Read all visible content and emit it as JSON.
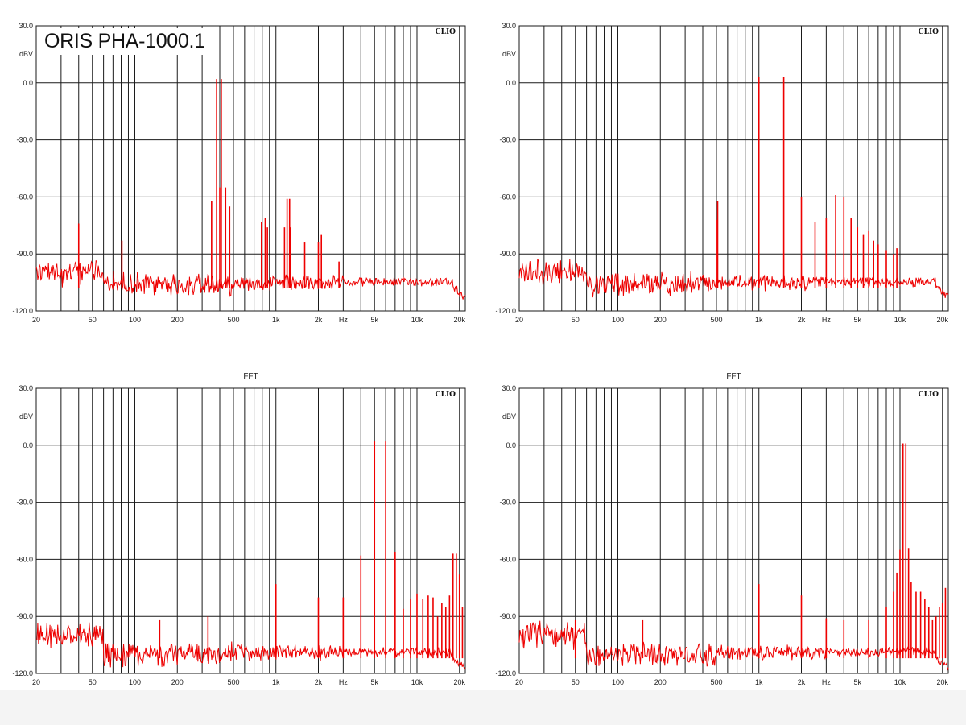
{
  "figure": {
    "device_title": "ORIS PHA-1000.1",
    "background": "#ffffff",
    "footer_color": "#f4f4f4"
  },
  "chart_data": [
    {
      "type": "line",
      "title": "",
      "brand": "CLIO",
      "ylabel": "dBV",
      "xlabel": "Hz",
      "x_scale": "log",
      "xlim": [
        20,
        22000
      ],
      "ylim": [
        -120,
        30
      ],
      "x_ticks": [
        {
          "v": 20,
          "label": "20"
        },
        {
          "v": 50,
          "label": "50"
        },
        {
          "v": 100,
          "label": "100"
        },
        {
          "v": 200,
          "label": "200"
        },
        {
          "v": 500,
          "label": "500"
        },
        {
          "v": 1000,
          "label": "1k"
        },
        {
          "v": 2000,
          "label": "2k"
        },
        {
          "v": 3000,
          "label": "Hz"
        },
        {
          "v": 5000,
          "label": "5k"
        },
        {
          "v": 10000,
          "label": "10k"
        },
        {
          "v": 20000,
          "label": "20k"
        }
      ],
      "y_ticks": [
        {
          "v": 30,
          "label": "30.0"
        },
        {
          "v": 0,
          "label": "0.0"
        },
        {
          "v": -30,
          "label": "-30.0"
        },
        {
          "v": -60,
          "label": "-60.0"
        },
        {
          "v": -90,
          "label": "-90.0"
        },
        {
          "v": -120,
          "label": "-120.0"
        }
      ],
      "grid": true,
      "color": "#ee0000",
      "noise_floor_db": -104,
      "peaks": [
        {
          "f": 40,
          "db": -74
        },
        {
          "f": 81,
          "db": -83
        },
        {
          "f": 350,
          "db": -62
        },
        {
          "f": 380,
          "db": 2
        },
        {
          "f": 400,
          "db": -55
        },
        {
          "f": 410,
          "db": 2
        },
        {
          "f": 440,
          "db": -55
        },
        {
          "f": 470,
          "db": -65
        },
        {
          "f": 790,
          "db": -73
        },
        {
          "f": 840,
          "db": -71
        },
        {
          "f": 870,
          "db": -76
        },
        {
          "f": 1150,
          "db": -76
        },
        {
          "f": 1200,
          "db": -61
        },
        {
          "f": 1250,
          "db": -61
        },
        {
          "f": 1270,
          "db": -76
        },
        {
          "f": 1600,
          "db": -84
        },
        {
          "f": 2000,
          "db": -84
        },
        {
          "f": 2100,
          "db": -80
        },
        {
          "f": 2800,
          "db": -94
        }
      ]
    },
    {
      "type": "line",
      "title": "",
      "brand": "CLIO",
      "ylabel": "dBV",
      "xlabel": "Hz",
      "x_scale": "log",
      "xlim": [
        20,
        22000
      ],
      "ylim": [
        -120,
        30
      ],
      "x_ticks": [
        {
          "v": 20,
          "label": "20"
        },
        {
          "v": 50,
          "label": "50"
        },
        {
          "v": 100,
          "label": "100"
        },
        {
          "v": 200,
          "label": "200"
        },
        {
          "v": 500,
          "label": "500"
        },
        {
          "v": 1000,
          "label": "1k"
        },
        {
          "v": 2000,
          "label": "2k"
        },
        {
          "v": 3000,
          "label": "Hz"
        },
        {
          "v": 5000,
          "label": "5k"
        },
        {
          "v": 10000,
          "label": "10k"
        },
        {
          "v": 20000,
          "label": "20k"
        }
      ],
      "y_ticks": [
        {
          "v": 30,
          "label": "30.0"
        },
        {
          "v": 0,
          "label": "0.0"
        },
        {
          "v": -30,
          "label": "-30.0"
        },
        {
          "v": -60,
          "label": "-60.0"
        },
        {
          "v": -90,
          "label": "-90.0"
        },
        {
          "v": -120,
          "label": "-120.0"
        }
      ],
      "grid": true,
      "color": "#ee0000",
      "noise_floor_db": -104,
      "peaks": [
        {
          "f": 500,
          "db": -72
        },
        {
          "f": 510,
          "db": -62
        },
        {
          "f": 1000,
          "db": 3
        },
        {
          "f": 1500,
          "db": 3
        },
        {
          "f": 2000,
          "db": -60
        },
        {
          "f": 2500,
          "db": -73
        },
        {
          "f": 3000,
          "db": -71
        },
        {
          "f": 3500,
          "db": -59
        },
        {
          "f": 4000,
          "db": -60
        },
        {
          "f": 4500,
          "db": -71
        },
        {
          "f": 5000,
          "db": -76
        },
        {
          "f": 5500,
          "db": -80
        },
        {
          "f": 6000,
          "db": -78
        },
        {
          "f": 6500,
          "db": -83
        },
        {
          "f": 7000,
          "db": -85
        },
        {
          "f": 8000,
          "db": -88
        },
        {
          "f": 9000,
          "db": -90
        },
        {
          "f": 9500,
          "db": -87
        }
      ]
    },
    {
      "type": "line",
      "title": "FFT",
      "brand": "CLIO",
      "ylabel": "dBV",
      "xlabel": "Hz",
      "x_scale": "log",
      "xlim": [
        20,
        22000
      ],
      "ylim": [
        -120,
        30
      ],
      "x_ticks": [
        {
          "v": 20,
          "label": "20"
        },
        {
          "v": 50,
          "label": "50"
        },
        {
          "v": 100,
          "label": "100"
        },
        {
          "v": 200,
          "label": "200"
        },
        {
          "v": 500,
          "label": "500"
        },
        {
          "v": 1000,
          "label": "1k"
        },
        {
          "v": 2000,
          "label": "2k"
        },
        {
          "v": 3000,
          "label": "Hz"
        },
        {
          "v": 5000,
          "label": "5k"
        },
        {
          "v": 10000,
          "label": "10k"
        },
        {
          "v": 20000,
          "label": "20k"
        }
      ],
      "y_ticks": [
        {
          "v": 30,
          "label": "30.0"
        },
        {
          "v": 0,
          "label": "0.0"
        },
        {
          "v": -30,
          "label": "-30.0"
        },
        {
          "v": -60,
          "label": "-60.0"
        },
        {
          "v": -90,
          "label": "-90.0"
        },
        {
          "v": -120,
          "label": "-120.0"
        }
      ],
      "grid": true,
      "color": "#ee0000",
      "noise_floor_db": -108,
      "peaks": [
        {
          "f": 150,
          "db": -92
        },
        {
          "f": 330,
          "db": -90
        },
        {
          "f": 1000,
          "db": -73
        },
        {
          "f": 2000,
          "db": -80
        },
        {
          "f": 3000,
          "db": -80
        },
        {
          "f": 4000,
          "db": -58
        },
        {
          "f": 5000,
          "db": 2
        },
        {
          "f": 6000,
          "db": 2
        },
        {
          "f": 7000,
          "db": -56
        },
        {
          "f": 8000,
          "db": -86
        },
        {
          "f": 9000,
          "db": -81
        },
        {
          "f": 10000,
          "db": -78
        },
        {
          "f": 11000,
          "db": -81
        },
        {
          "f": 12000,
          "db": -79
        },
        {
          "f": 13000,
          "db": -80
        },
        {
          "f": 14000,
          "db": -90
        },
        {
          "f": 15000,
          "db": -83
        },
        {
          "f": 16000,
          "db": -85
        },
        {
          "f": 17000,
          "db": -79
        },
        {
          "f": 18000,
          "db": -57
        },
        {
          "f": 19000,
          "db": -57
        },
        {
          "f": 20000,
          "db": -68
        },
        {
          "f": 21000,
          "db": -85
        }
      ]
    },
    {
      "type": "line",
      "title": "FFT",
      "brand": "CLIO",
      "ylabel": "dBV",
      "xlabel": "Hz",
      "x_scale": "log",
      "xlim": [
        20,
        22000
      ],
      "ylim": [
        -120,
        30
      ],
      "x_ticks": [
        {
          "v": 20,
          "label": "20"
        },
        {
          "v": 50,
          "label": "50"
        },
        {
          "v": 100,
          "label": "100"
        },
        {
          "v": 200,
          "label": "200"
        },
        {
          "v": 500,
          "label": "500"
        },
        {
          "v": 1000,
          "label": "1k"
        },
        {
          "v": 2000,
          "label": "2k"
        },
        {
          "v": 3000,
          "label": "Hz"
        },
        {
          "v": 5000,
          "label": "5k"
        },
        {
          "v": 10000,
          "label": "10k"
        },
        {
          "v": 20000,
          "label": "20k"
        }
      ],
      "y_ticks": [
        {
          "v": 30,
          "label": "30.0"
        },
        {
          "v": 0,
          "label": "0.0"
        },
        {
          "v": -30,
          "label": "-30.0"
        },
        {
          "v": -60,
          "label": "-60.0"
        },
        {
          "v": -90,
          "label": "-90.0"
        },
        {
          "v": -120,
          "label": "-120.0"
        }
      ],
      "grid": true,
      "color": "#ee0000",
      "noise_floor_db": -108,
      "peaks": [
        {
          "f": 50,
          "db": -92
        },
        {
          "f": 150,
          "db": -92
        },
        {
          "f": 1000,
          "db": -73
        },
        {
          "f": 2000,
          "db": -79
        },
        {
          "f": 3000,
          "db": -91
        },
        {
          "f": 4000,
          "db": -92
        },
        {
          "f": 6000,
          "db": -92
        },
        {
          "f": 8000,
          "db": -85
        },
        {
          "f": 9000,
          "db": -77
        },
        {
          "f": 9500,
          "db": -67
        },
        {
          "f": 10000,
          "db": -55
        },
        {
          "f": 10500,
          "db": 1
        },
        {
          "f": 11000,
          "db": 1
        },
        {
          "f": 11500,
          "db": -54
        },
        {
          "f": 12000,
          "db": -72
        },
        {
          "f": 13000,
          "db": -77
        },
        {
          "f": 14000,
          "db": -77
        },
        {
          "f": 15000,
          "db": -81
        },
        {
          "f": 16000,
          "db": -85
        },
        {
          "f": 17000,
          "db": -92
        },
        {
          "f": 18000,
          "db": -90
        },
        {
          "f": 19000,
          "db": -85
        },
        {
          "f": 20000,
          "db": -83
        },
        {
          "f": 21000,
          "db": -75
        }
      ]
    }
  ]
}
